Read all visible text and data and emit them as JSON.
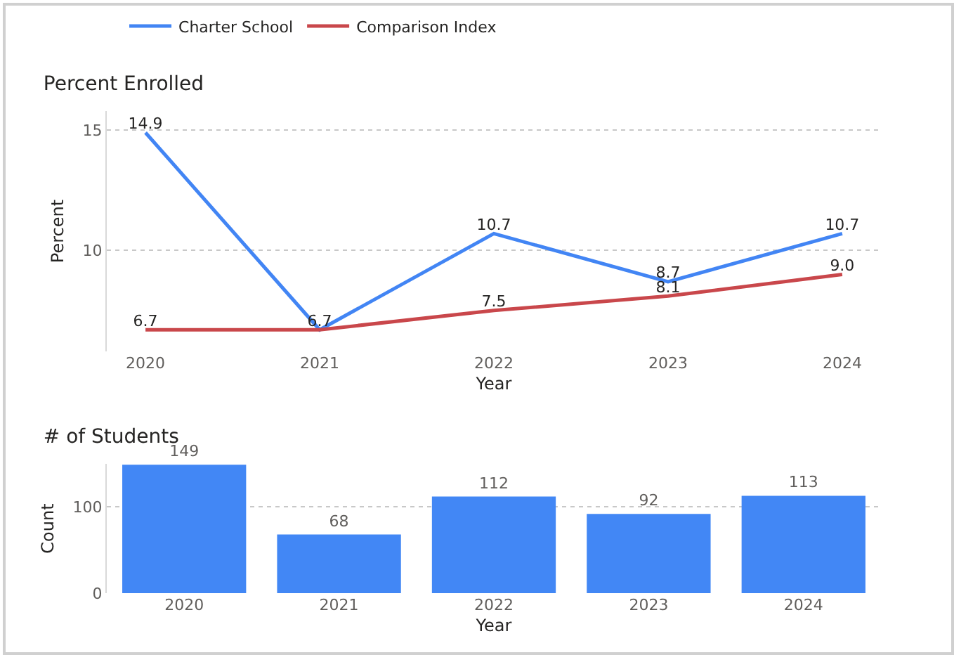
{
  "chart_data": [
    {
      "type": "line",
      "title": "Percent Enrolled",
      "xlabel": "Year",
      "ylabel": "Percent",
      "categories": [
        "2020",
        "2021",
        "2022",
        "2023",
        "2024"
      ],
      "series": [
        {
          "name": "Charter School",
          "color": "#4285f4",
          "values": [
            14.9,
            6.7,
            10.7,
            8.7,
            10.7
          ],
          "value_labels": [
            "14.9",
            "6.7",
            "10.7",
            "8.7",
            "10.7"
          ]
        },
        {
          "name": "Comparison Index",
          "color": "#c9474b",
          "values": [
            6.7,
            6.7,
            7.5,
            8.1,
            9.0
          ],
          "value_labels": [
            "6.7",
            null,
            "7.5",
            "8.1",
            "9.0"
          ]
        }
      ],
      "ylim": [
        5.8,
        15.8
      ],
      "yticks": [
        10,
        15
      ],
      "grid": "y",
      "legend": "top left",
      "line_style": "solid",
      "marker": "none"
    },
    {
      "type": "bar",
      "title": "# of Students",
      "xlabel": "Year",
      "ylabel": "Count",
      "categories": [
        "2020",
        "2021",
        "2022",
        "2023",
        "2024"
      ],
      "values": [
        149,
        68,
        112,
        92,
        113
      ],
      "color": "#4287f5",
      "ylim": [
        0,
        150
      ],
      "yticks": [
        0,
        100
      ],
      "grid": "y",
      "data_labels": true,
      "legend": false
    }
  ]
}
